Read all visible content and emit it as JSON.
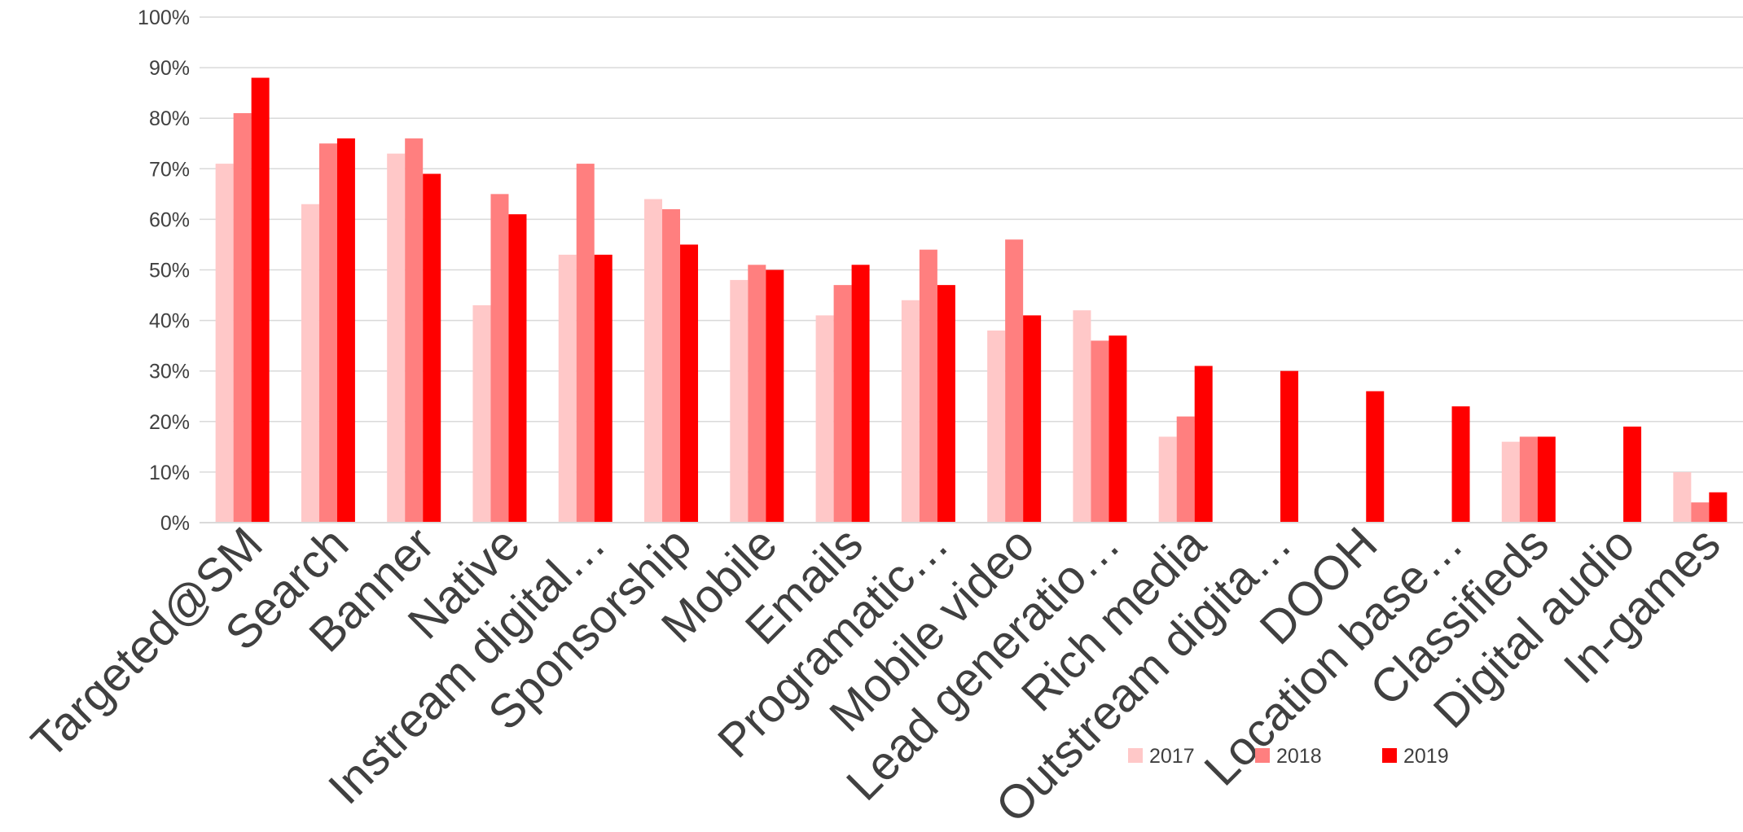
{
  "chart_data": {
    "type": "bar",
    "title": "",
    "xlabel": "",
    "ylabel": "",
    "ylim": [
      0,
      1
    ],
    "y_ticks": [
      "0%",
      "10%",
      "20%",
      "30%",
      "40%",
      "50%",
      "60%",
      "70%",
      "80%",
      "90%",
      "100%"
    ],
    "grid": true,
    "legend_position": "bottom",
    "categories": [
      "Targeted@SM",
      "Search",
      "Banner",
      "Native",
      "Instream digital…",
      "Sponsorship",
      "Mobile",
      "Emails",
      "Programatic…",
      "Mobile video",
      "Lead generatio…",
      "Rich media",
      "Outstream digita…",
      "DOOH",
      "Location base…",
      "Classifieds",
      "Digital audio",
      "In-games"
    ],
    "series": [
      {
        "name": "2017",
        "color": "#ffc8c8",
        "values": [
          0.71,
          0.63,
          0.73,
          0.43,
          0.53,
          0.64,
          0.48,
          0.41,
          0.44,
          0.38,
          0.42,
          0.17,
          null,
          null,
          null,
          0.16,
          null,
          0.1
        ]
      },
      {
        "name": "2018",
        "color": "#ff7f7f",
        "values": [
          0.81,
          0.75,
          0.76,
          0.65,
          0.71,
          0.62,
          0.51,
          0.47,
          0.54,
          0.56,
          0.36,
          0.21,
          null,
          null,
          null,
          0.17,
          null,
          0.04
        ]
      },
      {
        "name": "2019",
        "color": "#ff0000",
        "values": [
          0.88,
          0.76,
          0.69,
          0.61,
          0.53,
          0.55,
          0.5,
          0.51,
          0.47,
          0.41,
          0.37,
          0.31,
          0.3,
          0.26,
          0.23,
          0.17,
          0.19,
          0.06
        ]
      }
    ]
  }
}
